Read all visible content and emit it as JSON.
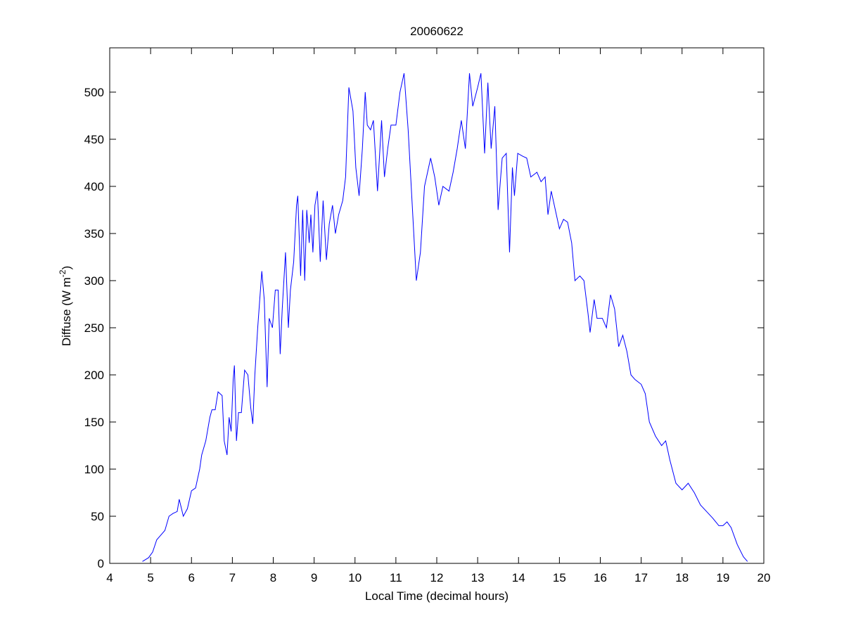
{
  "chart_data": {
    "type": "line",
    "title": "20060622",
    "xlabel": "Local Time (decimal hours)",
    "ylabel": "Diffuse (W m",
    "ylabel_superscript": "-2",
    "ylabel_suffix": ")",
    "xlim": [
      4,
      20
    ],
    "xticks": [
      4,
      5,
      6,
      7,
      8,
      9,
      10,
      11,
      12,
      13,
      14,
      15,
      16,
      17,
      18,
      19,
      20
    ],
    "ylim": [
      0,
      547
    ],
    "yticks": [
      0,
      50,
      100,
      150,
      200,
      250,
      300,
      350,
      400,
      450,
      500
    ],
    "grid": false,
    "series": [
      {
        "color": "#0000ff",
        "x": [
          4.8,
          4.95,
          5.05,
          5.15,
          5.25,
          5.35,
          5.45,
          5.55,
          5.65,
          5.7,
          5.8,
          5.9,
          6.0,
          6.1,
          6.2,
          6.25,
          6.35,
          6.45,
          6.5,
          6.58,
          6.65,
          6.75,
          6.8,
          6.87,
          6.92,
          6.97,
          7.02,
          7.05,
          7.1,
          7.15,
          7.22,
          7.3,
          7.38,
          7.45,
          7.5,
          7.55,
          7.62,
          7.72,
          7.78,
          7.85,
          7.9,
          7.98,
          8.05,
          8.12,
          8.17,
          8.22,
          8.3,
          8.37,
          8.42,
          8.5,
          8.57,
          8.6,
          8.67,
          8.72,
          8.77,
          8.82,
          8.88,
          8.92,
          8.97,
          9.02,
          9.08,
          9.15,
          9.22,
          9.3,
          9.37,
          9.45,
          9.52,
          9.6,
          9.7,
          9.77,
          9.85,
          9.95,
          10.02,
          10.1,
          10.18,
          10.25,
          10.3,
          10.38,
          10.45,
          10.55,
          10.65,
          10.72,
          10.8,
          10.88,
          11.0,
          11.1,
          11.2,
          11.3,
          11.4,
          11.5,
          11.6,
          11.7,
          11.85,
          11.95,
          12.05,
          12.15,
          12.3,
          12.4,
          12.5,
          12.6,
          12.7,
          12.8,
          12.88,
          13.0,
          13.08,
          13.17,
          13.25,
          13.33,
          13.42,
          13.5,
          13.6,
          13.7,
          13.78,
          13.85,
          13.9,
          13.98,
          14.1,
          14.2,
          14.3,
          14.45,
          14.55,
          14.65,
          14.72,
          14.8,
          14.9,
          15.0,
          15.1,
          15.2,
          15.3,
          15.38,
          15.5,
          15.6,
          15.7,
          15.75,
          15.85,
          15.92,
          16.05,
          16.15,
          16.25,
          16.35,
          16.45,
          16.55,
          16.65,
          16.75,
          16.85,
          17.0,
          17.1,
          17.2,
          17.35,
          17.5,
          17.6,
          17.7,
          17.85,
          18.0,
          18.15,
          18.3,
          18.45,
          18.6,
          18.75,
          18.9,
          19.0,
          19.1,
          19.2,
          19.35,
          19.5,
          19.6
        ],
        "values": [
          2,
          6,
          12,
          25,
          30,
          35,
          50,
          53,
          55,
          68,
          50,
          58,
          77,
          80,
          100,
          115,
          130,
          155,
          163,
          163,
          182,
          178,
          130,
          115,
          155,
          140,
          195,
          210,
          130,
          160,
          160,
          205,
          200,
          165,
          148,
          200,
          250,
          310,
          280,
          187,
          260,
          250,
          290,
          290,
          222,
          270,
          330,
          250,
          290,
          320,
          380,
          390,
          305,
          375,
          300,
          375,
          340,
          370,
          330,
          380,
          395,
          320,
          385,
          322,
          360,
          380,
          350,
          370,
          385,
          410,
          505,
          480,
          420,
          390,
          440,
          500,
          465,
          460,
          470,
          395,
          470,
          410,
          440,
          465,
          465,
          500,
          520,
          460,
          380,
          300,
          330,
          400,
          430,
          410,
          380,
          400,
          395,
          415,
          440,
          470,
          440,
          520,
          485,
          505,
          520,
          435,
          510,
          440,
          485,
          375,
          430,
          435,
          330,
          420,
          390,
          435,
          432,
          430,
          410,
          415,
          405,
          410,
          370,
          395,
          375,
          355,
          365,
          362,
          340,
          300,
          305,
          300,
          265,
          245,
          280,
          260,
          260,
          250,
          285,
          270,
          230,
          242,
          225,
          200,
          195,
          190,
          180,
          150,
          135,
          125,
          130,
          110,
          85,
          78,
          85,
          75,
          62,
          55,
          48,
          40,
          40,
          44,
          38,
          20,
          7,
          2
        ]
      }
    ]
  }
}
